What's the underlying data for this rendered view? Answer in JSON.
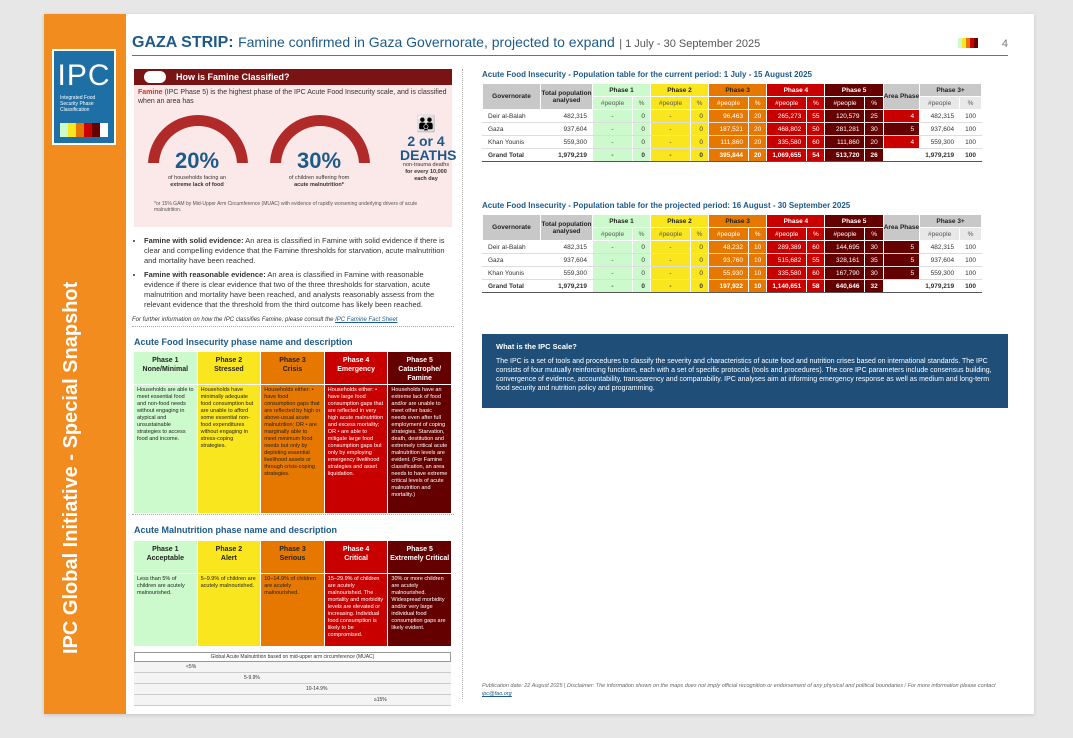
{
  "side_title": "IPC Global Initiative - Special Snapshot",
  "logo": {
    "name": "IPC",
    "subtitle": "Integrated Food Security Phase Classification"
  },
  "header": {
    "region": "GAZA STRIP:",
    "title": "Famine confirmed in Gaza Governorate, projected to expand",
    "period": "1 July - 30 September 2025",
    "page": "4"
  },
  "famine_box": {
    "heading": "How is Famine Classified?",
    "lead": "Famine",
    "def": " (IPC Phase 5) is the highest phase of the IPC Acute Food Insecurity scale, and is classified when an area has",
    "g1_pct": "20%",
    "g1_cap1": "of households facing an",
    "g1_cap2": "extreme lack of food",
    "g2_pct": "30%",
    "g2_cap1": "of children suffering from",
    "g2_cap2": "acute malnutrition*",
    "deaths_num": "2 or 4",
    "deaths_word": "DEATHS",
    "deaths_cap1": "non-trauma deaths",
    "deaths_cap2": "for every 10,000",
    "deaths_cap3": "each day",
    "footnote": "*or 15% GAM by Mid-Upper Arm Circumference (MUAC) with evidence of rapidly worsening underlying drivers of acute malnutrition."
  },
  "bullets": [
    {
      "lead": "Famine with solid evidence:",
      "text": " An area is classified in Famine with solid evidence if there is clear and compelling evidence that the Famine thresholds for starvation, acute malnutrition and mortality have been reached."
    },
    {
      "lead": "Famine with reasonable evidence:",
      "text": " An area is classified in Famine with reasonable evidence if there is clear evidence that two of the three thresholds for starvation, acute malnutrition and mortality have been reached, and analysts reasonably assess from the relevant evidence that the threshold from the third outcome has likely been reached."
    }
  ],
  "further": {
    "text": "For further information on how the IPC classifies Famine, please consult the ",
    "link": "IPC Famine Fact Sheet"
  },
  "afi_phase": {
    "title": "Acute Food Insecurity phase name and description",
    "phases": [
      {
        "h1": "Phase 1",
        "h2": "None/Minimal",
        "color": "#cdfacd",
        "body": "Households are able to meet essential food and non-food needs without engaging in atypical and unsustainable strategies to access food and income."
      },
      {
        "h1": "Phase 2",
        "h2": "Stressed",
        "color": "#fae61e",
        "body": "Households have minimally adequate food consumption but are unable to afford some essential non-food expenditures without engaging in stress-coping strategies."
      },
      {
        "h1": "Phase 3",
        "h2": "Crisis",
        "color": "#e67800",
        "body": "Households either: • have food consumption gaps that are reflected by high or above-usual acute malnutrition; OR • are marginally able to meet minimum food needs but only by depleting essential livelihood assets or through crisis-coping strategies."
      },
      {
        "h1": "Phase 4",
        "h2": "Emergency",
        "color": "#c80000",
        "body": "Households either: • have large food consumption gaps that are reflected in very high acute malnutrition and excess mortality; OR • are able to mitigate large food consumption gaps but only by employing emergency livelihood strategies and asset liquidation."
      },
      {
        "h1": "Phase 5",
        "h2": "Catastrophe/ Famine",
        "color": "#640000",
        "body": "Households have an extreme lack of food and/or are unable to meet other basic needs even after full employment of coping strategies. Starvation, death, destitution and extremely critical acute malnutrition levels are evident. (For Famine classification, an area needs to have extreme critical levels of acute malnutrition and mortality.)"
      }
    ]
  },
  "am_phase": {
    "title": "Acute Malnutrition phase name and description",
    "phases": [
      {
        "h1": "Phase 1",
        "h2": "Acceptable",
        "color": "#cdfacd",
        "body": "Less than 5% of children are acutely malnourished."
      },
      {
        "h1": "Phase 2",
        "h2": "Alert",
        "color": "#fae61e",
        "body": "5–9.9% of children are acutely malnourished."
      },
      {
        "h1": "Phase 3",
        "h2": "Serious",
        "color": "#e67800",
        "body": "10–14.9% of children are acutely malnourished."
      },
      {
        "h1": "Phase 4",
        "h2": "Critical",
        "color": "#c80000",
        "body": "15–29.9% of children are acutely malnourished. The mortality and morbidity levels are elevated or increasing. Individual food consumption is likely to be compromised."
      },
      {
        "h1": "Phase 5",
        "h2": "Extremely Critical",
        "color": "#640000",
        "body": "30% or more children are acutely malnourished. Widespread morbidity and/or very large individual food consumption gaps are likely evident."
      }
    ],
    "gam_title": "Global Acute Malnutrition based on mid-upper arm circumference (MUAC)",
    "gam_rows": [
      "<5%",
      "5-9.9%",
      "10-14.9%",
      "≥15%"
    ]
  },
  "table_current": {
    "title": "Acute Food Insecurity - Population table for the current period: 1 July - 15 August 2025",
    "headers": [
      "Governorate",
      "Total population analysed",
      "Phase 1",
      "Phase 2",
      "Phase 3",
      "Phase 4",
      "Phase 5",
      "Area Phase",
      "Phase 3+"
    ],
    "sub": [
      "#people",
      "%"
    ],
    "rows": [
      [
        "Deir al-Balah",
        "482,315",
        "-",
        "0",
        "-",
        "0",
        "96,463",
        "20",
        "265,273",
        "55",
        "120,579",
        "25",
        "4",
        "482,315",
        "100"
      ],
      [
        "Gaza",
        "937,604",
        "-",
        "0",
        "-",
        "0",
        "187,521",
        "20",
        "468,802",
        "50",
        "281,281",
        "30",
        "5",
        "937,604",
        "100"
      ],
      [
        "Khan Younis",
        "559,300",
        "-",
        "0",
        "-",
        "0",
        "111,860",
        "20",
        "335,580",
        "60",
        "111,860",
        "20",
        "4",
        "559,300",
        "100"
      ]
    ],
    "total": [
      "Grand Total",
      "1,979,219",
      "-",
      "0",
      "-",
      "0",
      "395,844",
      "20",
      "1,069,655",
      "54",
      "513,720",
      "26",
      "",
      "1,979,219",
      "100"
    ]
  },
  "table_projected": {
    "title": "Acute Food Insecurity - Population table for the projected period: 16 August - 30 September 2025",
    "headers": [
      "Governorate",
      "Total population analysed",
      "Phase 1",
      "Phase 2",
      "Phase 3",
      "Phase 4",
      "Phase 5",
      "Area Phase",
      "Phase 3+"
    ],
    "sub": [
      "#people",
      "%"
    ],
    "rows": [
      [
        "Deir al-Balah",
        "482,315",
        "-",
        "0",
        "-",
        "0",
        "48,232",
        "10",
        "289,389",
        "60",
        "144,695",
        "30",
        "5",
        "482,315",
        "100"
      ],
      [
        "Gaza",
        "937,604",
        "-",
        "0",
        "-",
        "0",
        "93,760",
        "10",
        "515,682",
        "55",
        "328,161",
        "35",
        "5",
        "937,604",
        "100"
      ],
      [
        "Khan Younis",
        "559,300",
        "-",
        "0",
        "-",
        "0",
        "55,930",
        "10",
        "335,580",
        "60",
        "167,790",
        "30",
        "5",
        "559,300",
        "100"
      ]
    ],
    "total": [
      "Grand Total",
      "1,979,219",
      "-",
      "0",
      "-",
      "0",
      "197,922",
      "10",
      "1,140,651",
      "58",
      "640,646",
      "32",
      "",
      "1,979,219",
      "100"
    ]
  },
  "ipc_scale": {
    "heading": "What is the IPC Scale?",
    "body": "The IPC is a set of tools and procedures to classify the severity and characteristics of acute food and nutrition crises based on international standards. The IPC consists of four mutually reinforcing functions, each with a set of specific protocols (tools and procedures). The core IPC parameters include consensus building, convergence of evidence, accountability, transparency and comparability. IPC analyses aim at informing emergency response as well as medium and long-term food security and nutrition policy and programming."
  },
  "footer": {
    "text": "Publication date: 22 August 2025 | Disclaimer: The information shown on the maps does not imply official recognition or endorsement of any physical and political boundaries / For more information please contact ",
    "link": "ipc@fao.org"
  },
  "colors": {
    "p1": "#cdfacd",
    "p2": "#fae61e",
    "p3": "#e67800",
    "p4": "#c80000",
    "p5": "#640000",
    "brand": "#1d5a8a",
    "orange": "#f28c1e"
  }
}
